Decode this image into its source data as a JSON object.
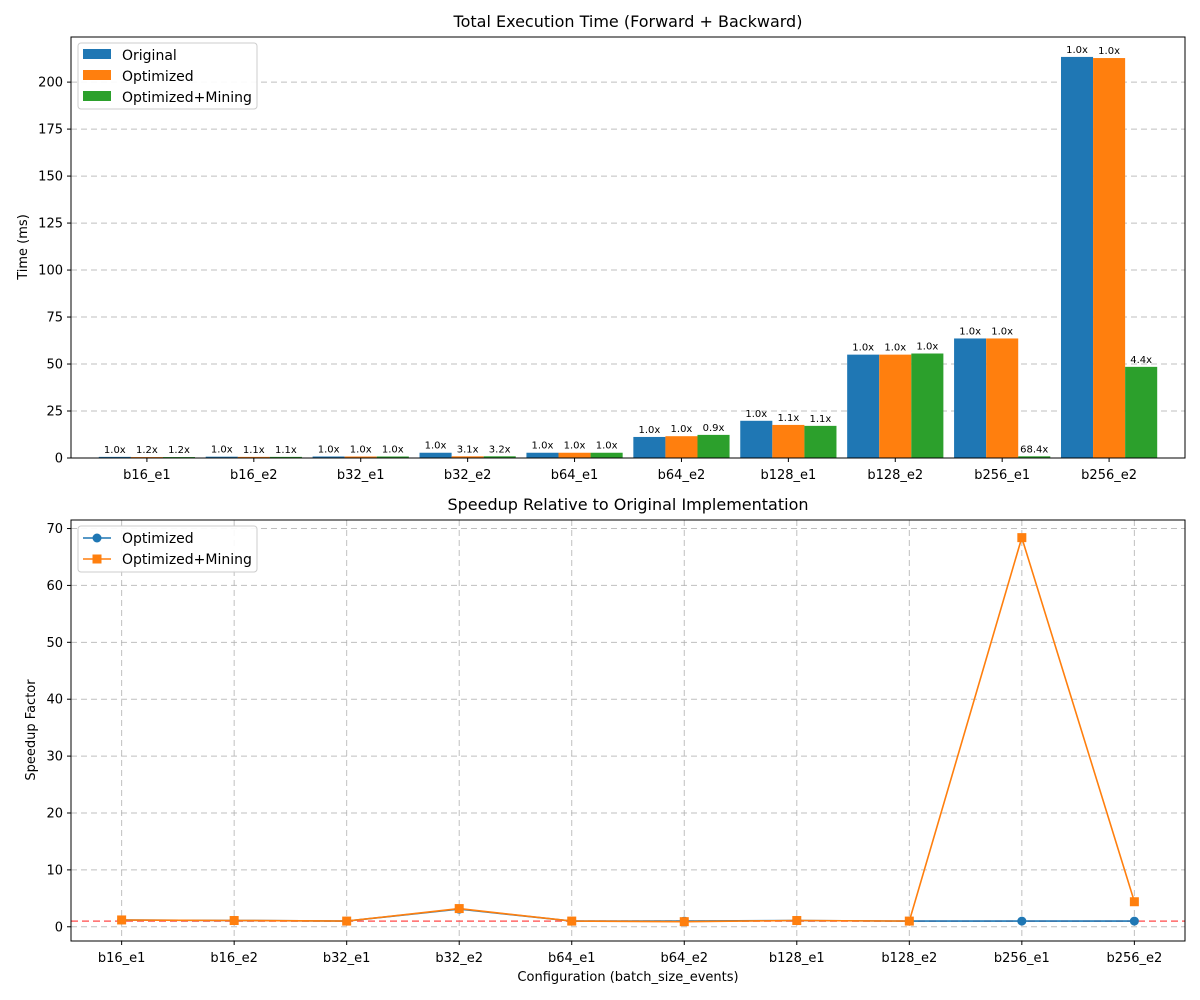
{
  "chart_data": [
    {
      "type": "bar",
      "title": "Total Execution Time (Forward + Backward)",
      "xlabel": "",
      "ylabel": "Time (ms)",
      "ylim": [
        0,
        224
      ],
      "yticks": [
        0,
        25,
        50,
        75,
        100,
        125,
        150,
        175,
        200
      ],
      "grid": true,
      "legend_position": "top-left",
      "categories": [
        "b16_e1",
        "b16_e2",
        "b32_e1",
        "b32_e2",
        "b64_e1",
        "b64_e2",
        "b128_e1",
        "b128_e2",
        "b256_e1",
        "b256_e2"
      ],
      "series": [
        {
          "name": "Original",
          "color": "#1f77b4",
          "values": [
            0.6,
            0.7,
            0.8,
            2.8,
            2.8,
            11.2,
            19.8,
            55.0,
            63.6,
            213.4
          ],
          "labels": [
            "1.0x",
            "1.0x",
            "1.0x",
            "1.0x",
            "1.0x",
            "1.0x",
            "1.0x",
            "1.0x",
            "1.0x",
            "1.0x"
          ]
        },
        {
          "name": "Optimized",
          "color": "#ff7f0e",
          "values": [
            0.5,
            0.6,
            0.8,
            0.9,
            2.8,
            11.6,
            17.6,
            55.0,
            63.6,
            212.8
          ],
          "labels": [
            "1.2x",
            "1.1x",
            "1.0x",
            "3.1x",
            "1.0x",
            "1.0x",
            "1.1x",
            "1.0x",
            "1.0x",
            "1.0x"
          ]
        },
        {
          "name": "Optimized+Mining",
          "color": "#2ca02c",
          "values": [
            0.5,
            0.6,
            0.8,
            0.9,
            2.8,
            12.3,
            17.1,
            55.6,
            0.9,
            48.5
          ],
          "labels": [
            "1.2x",
            "1.1x",
            "1.0x",
            "3.2x",
            "1.0x",
            "0.9x",
            "1.1x",
            "1.0x",
            "68.4x",
            "4.4x"
          ]
        }
      ]
    },
    {
      "type": "line",
      "title": "Speedup Relative to Original Implementation",
      "xlabel": "Configuration (batch_size_events)",
      "ylabel": "Speedup Factor",
      "ylim": [
        -2.5,
        71.5
      ],
      "yticks": [
        0,
        10,
        20,
        30,
        40,
        50,
        60,
        70
      ],
      "grid": true,
      "legend_position": "top-left",
      "reference_line": {
        "y": 1.0,
        "color": "#ff6666",
        "style": "dashed"
      },
      "categories": [
        "b16_e1",
        "b16_e2",
        "b32_e1",
        "b32_e2",
        "b64_e1",
        "b64_e2",
        "b128_e1",
        "b128_e2",
        "b256_e1",
        "b256_e2"
      ],
      "series": [
        {
          "name": "Optimized",
          "color": "#1f77b4",
          "marker": "circle",
          "values": [
            1.2,
            1.1,
            1.0,
            3.1,
            1.0,
            1.0,
            1.1,
            1.0,
            1.0,
            1.0
          ]
        },
        {
          "name": "Optimized+Mining",
          "color": "#ff7f0e",
          "marker": "square",
          "values": [
            1.2,
            1.1,
            1.0,
            3.2,
            1.0,
            0.9,
            1.1,
            1.0,
            68.4,
            4.4
          ]
        }
      ]
    }
  ]
}
